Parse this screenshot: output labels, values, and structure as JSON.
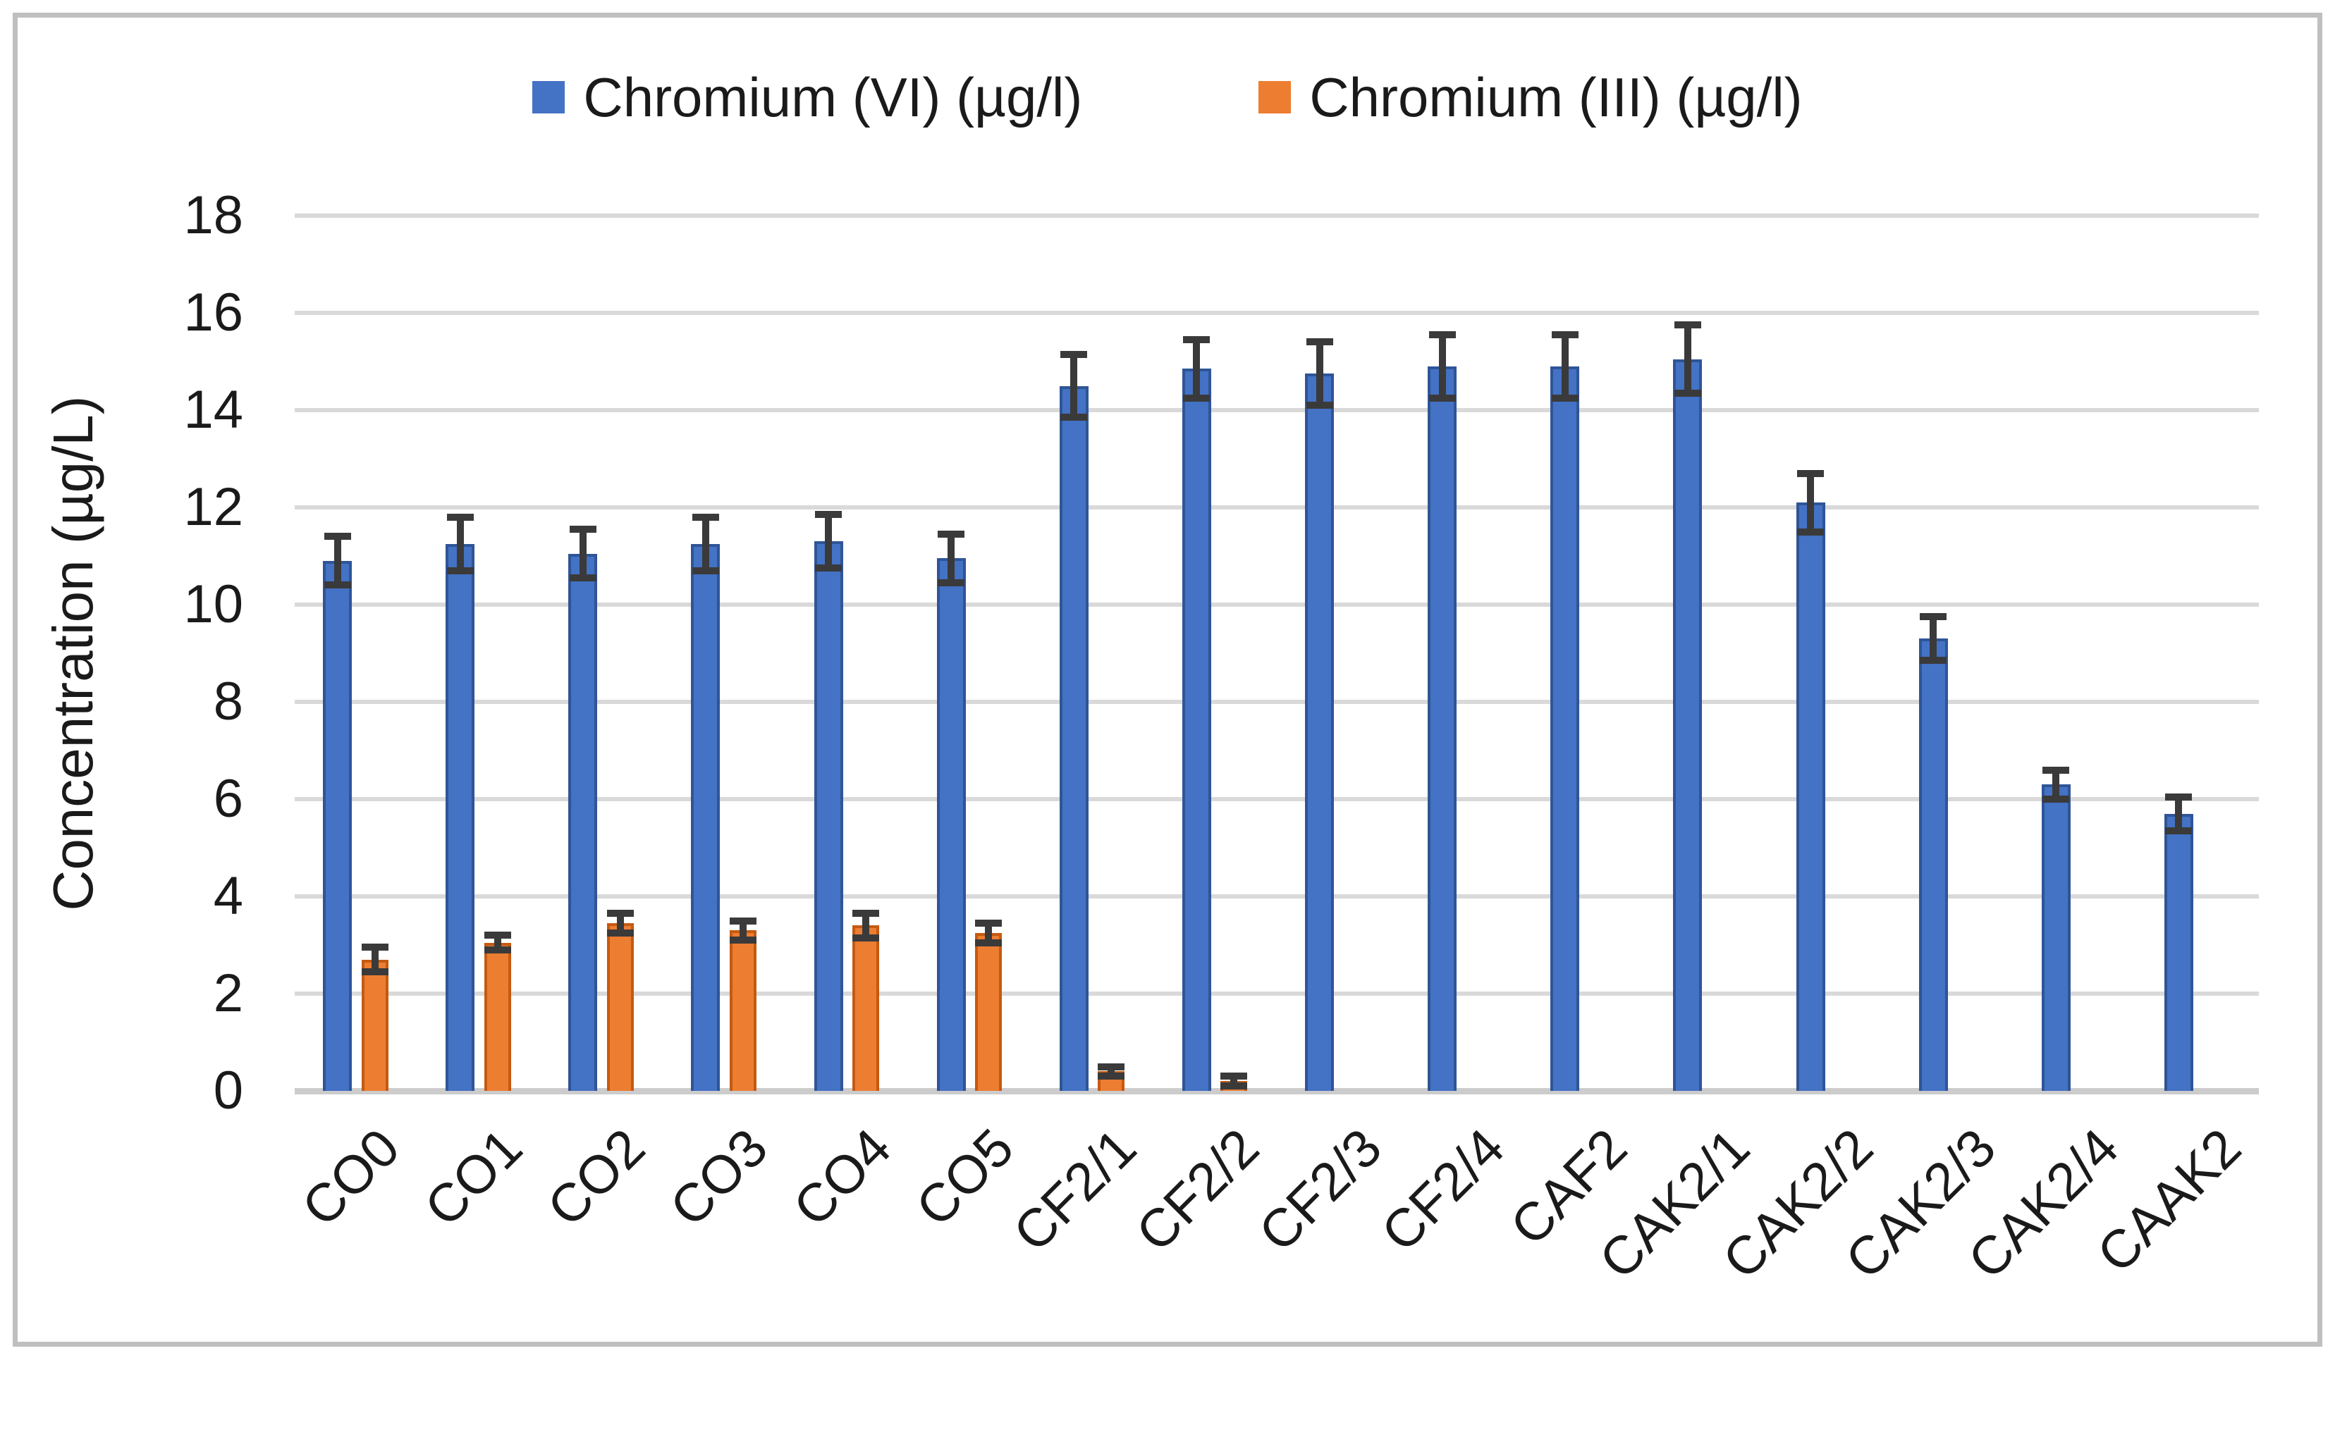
{
  "figure": {
    "background": "#ffffff",
    "frame_border_color": "#bfbfbf"
  },
  "chart_data": {
    "type": "bar",
    "title": "",
    "xlabel": "",
    "ylabel": "Concentration (µg/L)",
    "ylim": [
      0,
      18
    ],
    "yticks": [
      0,
      2,
      4,
      6,
      8,
      10,
      12,
      14,
      16,
      18
    ],
    "grid": true,
    "legend_position": "top-center",
    "gridline_color": "#d9d9d9",
    "axis_line_color": "#cccccc",
    "error_bar_color": "#3a3a3a",
    "text_color": "#1a1a1a",
    "categories": [
      "CO0",
      "CO1",
      "CO2",
      "CO3",
      "CO4",
      "CO5",
      "CF2/1",
      "CF2/2",
      "CF2/3",
      "CF2/4",
      "CAF2",
      "CAK2/1",
      "CAK2/2",
      "CAK2/3",
      "CAK2/4",
      "CAAK2"
    ],
    "series": [
      {
        "name": "Chromium (VI) (µg/l)",
        "color": "#4472c4",
        "edge_color": "#2f5597",
        "values": [
          10.9,
          11.25,
          11.05,
          11.25,
          11.3,
          10.95,
          14.5,
          14.85,
          14.75,
          14.9,
          14.9,
          15.05,
          12.1,
          9.3,
          6.3,
          5.7
        ],
        "errors": [
          0.5,
          0.55,
          0.5,
          0.55,
          0.55,
          0.5,
          0.65,
          0.6,
          0.65,
          0.65,
          0.65,
          0.7,
          0.6,
          0.45,
          0.3,
          0.35
        ]
      },
      {
        "name": "Chromium (III) (µg/l)",
        "color": "#ed7d31",
        "edge_color": "#c55a11",
        "values": [
          2.7,
          3.05,
          3.45,
          3.3,
          3.4,
          3.25,
          0.4,
          0.2,
          0,
          0,
          0,
          0,
          0,
          0,
          0,
          0
        ],
        "errors": [
          0.25,
          0.15,
          0.2,
          0.2,
          0.25,
          0.2,
          0.1,
          0.1,
          0,
          0,
          0,
          0,
          0,
          0,
          0,
          0
        ]
      }
    ]
  }
}
